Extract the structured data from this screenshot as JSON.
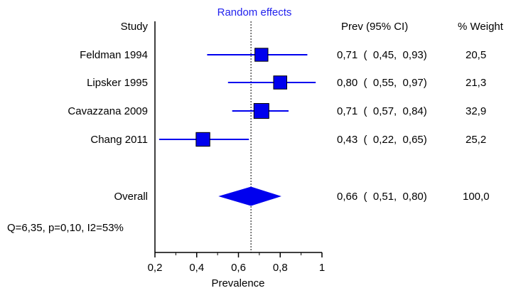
{
  "chart_data": {
    "type": "forest",
    "title": "Random effects",
    "xlabel": "Prevalence",
    "xlim": [
      0.2,
      1.0
    ],
    "xticks": [
      "0,2",
      "0,4",
      "0,6",
      "0,8",
      "1"
    ],
    "reference_line": 0.66,
    "headers": {
      "study": "Study",
      "ci": "Prev (95% CI)",
      "weight": "% Weight"
    },
    "studies": [
      {
        "name": "Feldman 1994",
        "est": 0.71,
        "lo": 0.45,
        "hi": 0.93,
        "ci_text": "0,71  (  0,45,  0,93)",
        "weight": 20.5,
        "weight_text": "20,5"
      },
      {
        "name": "Lipsker 1995",
        "est": 0.8,
        "lo": 0.55,
        "hi": 0.97,
        "ci_text": "0,80  (  0,55,  0,97)",
        "weight": 21.3,
        "weight_text": "21,3"
      },
      {
        "name": "Cavazzana 2009",
        "est": 0.71,
        "lo": 0.57,
        "hi": 0.84,
        "ci_text": "0,71  (  0,57,  0,84)",
        "weight": 32.9,
        "weight_text": "32,9"
      },
      {
        "name": "Chang 2011",
        "est": 0.43,
        "lo": 0.22,
        "hi": 0.65,
        "ci_text": "0,43  (  0,22,  0,65)",
        "weight": 25.2,
        "weight_text": "25,2"
      }
    ],
    "overall": {
      "name": "Overall",
      "est": 0.66,
      "lo": 0.51,
      "hi": 0.8,
      "ci_text": "0,66  (  0,51,  0,80)",
      "weight_text": "100,0"
    },
    "heterogeneity": "Q=6,35, p=0,10, I2=53%",
    "colors": {
      "marker": "#0000ee",
      "title": "#2222ee",
      "axis": "#000000"
    }
  }
}
